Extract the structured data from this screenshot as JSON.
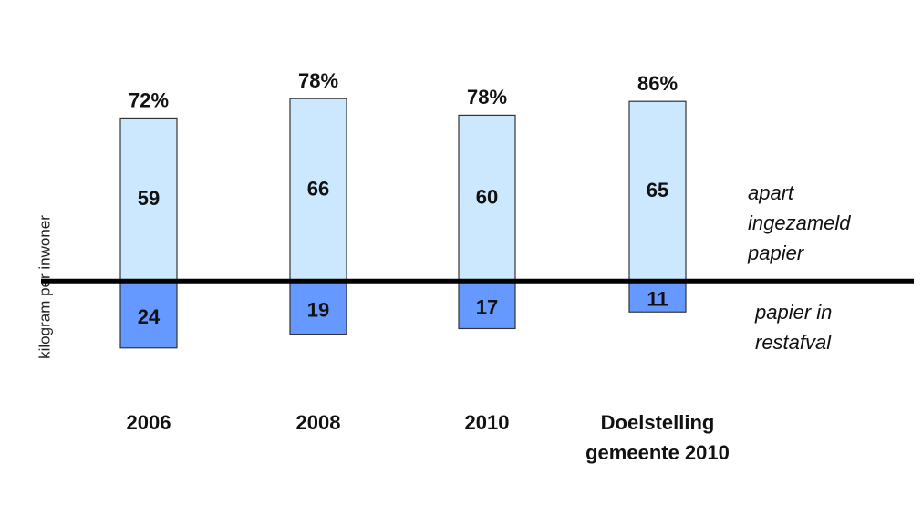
{
  "chart_data": {
    "type": "diverging-bar",
    "y_label": "kilogram per inwoner",
    "categories": [
      "2006",
      "2008",
      "2010",
      "Doelstelling gemeente 2010"
    ],
    "ylim": [
      -30,
      95
    ],
    "series": [
      {
        "name": "apart ingezameld papier",
        "color": "#cce8ff",
        "direction": "up",
        "values": [
          59,
          66,
          60,
          65
        ]
      },
      {
        "name": "papier in restafval",
        "color": "#6699ff",
        "direction": "down",
        "values": [
          24,
          19,
          17,
          11
        ]
      }
    ],
    "percentages": {
      "values": [
        72,
        78,
        78,
        86
      ],
      "value_labels": [
        "72%",
        "78%",
        "78%",
        "86%"
      ]
    }
  }
}
